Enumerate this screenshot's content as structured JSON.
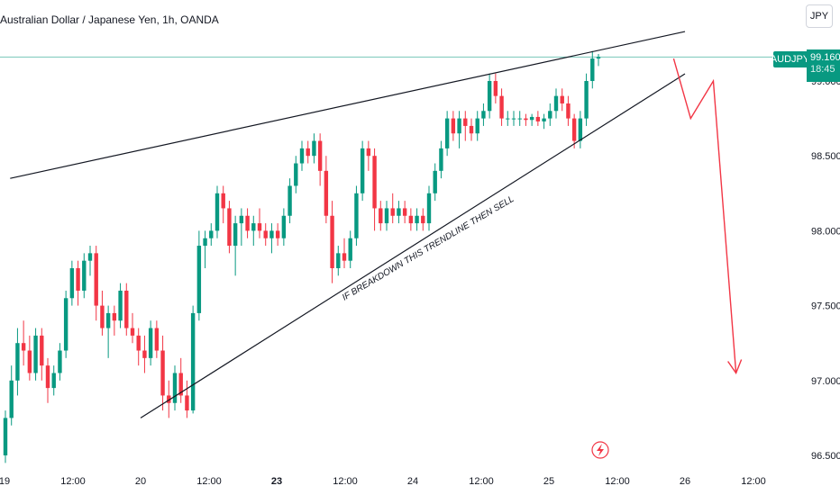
{
  "header": {
    "title": "Australian Dollar / Japanese Yen, 1h, OANDA",
    "currency": "JPY"
  },
  "price_label": {
    "symbol": "AUDJPY",
    "price": "99.160",
    "countdown": "18:45"
  },
  "annotation": {
    "text": "IF BREAKDOWN THIS TRENDLINE THEN SELL"
  },
  "colors": {
    "up": "#089981",
    "down": "#f23645",
    "trendline": "#131722",
    "projection": "#f23645",
    "price_line": "#089981"
  },
  "chart_data": {
    "type": "candlestick",
    "title": "Australian Dollar / Japanese Yen, 1h, OANDA",
    "ylim": [
      96.4,
      99.5
    ],
    "y_ticks": [
      "96.500",
      "97.000",
      "97.500",
      "98.000",
      "98.500",
      "99.000"
    ],
    "y_tick_values": [
      96.5,
      97.0,
      97.5,
      98.0,
      98.5,
      99.0
    ],
    "x_ticks": [
      "19",
      "12:00",
      "20",
      "12:00",
      "23",
      "12:00",
      "24",
      "12:00",
      "25",
      "12:00",
      "26",
      "12:00"
    ],
    "x_tick_bold": [
      false,
      false,
      false,
      false,
      true,
      false,
      false,
      false,
      false,
      false,
      false,
      false
    ],
    "last_price": 99.16,
    "candles_ohlc": [
      [
        96.5,
        96.8,
        96.45,
        96.75
      ],
      [
        96.75,
        97.1,
        96.7,
        97.0
      ],
      [
        97.0,
        97.35,
        96.9,
        97.25
      ],
      [
        97.25,
        97.4,
        97.1,
        97.2
      ],
      [
        97.2,
        97.3,
        97.0,
        97.05
      ],
      [
        97.05,
        97.35,
        97.0,
        97.3
      ],
      [
        97.3,
        97.35,
        97.0,
        97.1
      ],
      [
        97.1,
        97.15,
        96.85,
        96.95
      ],
      [
        96.95,
        97.1,
        96.9,
        97.05
      ],
      [
        97.05,
        97.25,
        97.0,
        97.2
      ],
      [
        97.2,
        97.6,
        97.15,
        97.55
      ],
      [
        97.55,
        97.8,
        97.5,
        97.75
      ],
      [
        97.75,
        97.8,
        97.5,
        97.6
      ],
      [
        97.6,
        97.85,
        97.55,
        97.8
      ],
      [
        97.8,
        97.9,
        97.7,
        97.85
      ],
      [
        97.85,
        97.9,
        97.4,
        97.5
      ],
      [
        97.5,
        97.6,
        97.3,
        97.35
      ],
      [
        97.35,
        97.5,
        97.15,
        97.45
      ],
      [
        97.45,
        97.5,
        97.3,
        97.4
      ],
      [
        97.4,
        97.65,
        97.35,
        97.6
      ],
      [
        97.6,
        97.65,
        97.3,
        97.35
      ],
      [
        97.35,
        97.45,
        97.25,
        97.3
      ],
      [
        97.3,
        97.35,
        97.1,
        97.2
      ],
      [
        97.2,
        97.3,
        97.05,
        97.15
      ],
      [
        97.15,
        97.4,
        97.1,
        97.35
      ],
      [
        97.35,
        97.4,
        97.15,
        97.2
      ],
      [
        97.2,
        97.3,
        96.8,
        96.9
      ],
      [
        96.9,
        97.0,
        96.75,
        96.85
      ],
      [
        96.85,
        97.1,
        96.8,
        97.05
      ],
      [
        97.05,
        97.15,
        96.85,
        96.9
      ],
      [
        96.9,
        97.0,
        96.75,
        96.8
      ],
      [
        96.8,
        97.5,
        96.78,
        97.45
      ],
      [
        97.45,
        98.0,
        97.4,
        97.9
      ],
      [
        97.9,
        98.0,
        97.75,
        97.95
      ],
      [
        97.95,
        98.05,
        97.9,
        98.0
      ],
      [
        98.0,
        98.3,
        97.95,
        98.25
      ],
      [
        98.25,
        98.3,
        98.05,
        98.15
      ],
      [
        98.15,
        98.2,
        97.85,
        97.9
      ],
      [
        97.9,
        98.1,
        97.7,
        98.05
      ],
      [
        98.05,
        98.15,
        97.9,
        98.1
      ],
      [
        98.1,
        98.15,
        97.95,
        98.0
      ],
      [
        98.0,
        98.1,
        97.9,
        98.05
      ],
      [
        98.05,
        98.15,
        97.95,
        98.0
      ],
      [
        98.0,
        98.05,
        97.9,
        97.95
      ],
      [
        97.95,
        98.05,
        97.85,
        98.0
      ],
      [
        98.0,
        98.05,
        97.9,
        97.95
      ],
      [
        97.95,
        98.15,
        97.9,
        98.1
      ],
      [
        98.1,
        98.35,
        98.05,
        98.3
      ],
      [
        98.3,
        98.5,
        98.25,
        98.45
      ],
      [
        98.45,
        98.6,
        98.4,
        98.55
      ],
      [
        98.55,
        98.6,
        98.45,
        98.5
      ],
      [
        98.5,
        98.65,
        98.45,
        98.6
      ],
      [
        98.6,
        98.65,
        98.3,
        98.4
      ],
      [
        98.4,
        98.5,
        98.05,
        98.1
      ],
      [
        98.1,
        98.2,
        97.65,
        97.75
      ],
      [
        97.75,
        97.9,
        97.7,
        97.85
      ],
      [
        97.85,
        97.95,
        97.75,
        97.8
      ],
      [
        97.8,
        98.0,
        97.75,
        97.95
      ],
      [
        97.95,
        98.3,
        97.9,
        98.25
      ],
      [
        98.25,
        98.6,
        98.2,
        98.55
      ],
      [
        98.55,
        98.6,
        98.4,
        98.5
      ],
      [
        98.5,
        98.55,
        98.0,
        98.15
      ],
      [
        98.15,
        98.2,
        98.0,
        98.05
      ],
      [
        98.05,
        98.2,
        98.0,
        98.15
      ],
      [
        98.15,
        98.25,
        98.05,
        98.1
      ],
      [
        98.1,
        98.2,
        98.05,
        98.15
      ],
      [
        98.15,
        98.2,
        98.05,
        98.1
      ],
      [
        98.1,
        98.15,
        98.0,
        98.05
      ],
      [
        98.05,
        98.15,
        98.0,
        98.1
      ],
      [
        98.1,
        98.15,
        98.0,
        98.05
      ],
      [
        98.05,
        98.3,
        98.0,
        98.25
      ],
      [
        98.25,
        98.45,
        98.2,
        98.4
      ],
      [
        98.4,
        98.6,
        98.35,
        98.55
      ],
      [
        98.55,
        98.8,
        98.5,
        98.75
      ],
      [
        98.75,
        98.8,
        98.6,
        98.65
      ],
      [
        98.65,
        98.8,
        98.55,
        98.75
      ],
      [
        98.75,
        98.8,
        98.6,
        98.7
      ],
      [
        98.7,
        98.75,
        98.6,
        98.65
      ],
      [
        98.65,
        98.8,
        98.6,
        98.75
      ],
      [
        98.75,
        98.85,
        98.7,
        98.8
      ],
      [
        98.8,
        99.05,
        98.75,
        99.0
      ],
      [
        99.0,
        99.05,
        98.85,
        98.9
      ],
      [
        98.9,
        98.95,
        98.7,
        98.75
      ],
      [
        98.75,
        98.8,
        98.7,
        98.75
      ],
      [
        98.75,
        98.8,
        98.7,
        98.75
      ],
      [
        98.75,
        98.8,
        98.7,
        98.75
      ],
      [
        98.75,
        98.78,
        98.7,
        98.74
      ],
      [
        98.74,
        98.78,
        98.7,
        98.76
      ],
      [
        98.76,
        98.8,
        98.7,
        98.73
      ],
      [
        98.73,
        98.78,
        98.68,
        98.75
      ],
      [
        98.75,
        98.85,
        98.7,
        98.8
      ],
      [
        98.8,
        98.95,
        98.75,
        98.9
      ],
      [
        98.9,
        98.95,
        98.8,
        98.85
      ],
      [
        98.85,
        98.9,
        98.7,
        98.75
      ],
      [
        98.75,
        98.78,
        98.55,
        98.6
      ],
      [
        98.6,
        98.8,
        98.55,
        98.75
      ],
      [
        98.75,
        99.05,
        98.7,
        99.0
      ],
      [
        99.0,
        99.2,
        98.95,
        99.15
      ],
      [
        99.15,
        99.18,
        99.1,
        99.16
      ]
    ],
    "trendlines": [
      {
        "from": [
          "20 00:00",
          96.75
        ],
        "to": [
          "25 22:00",
          99.0
        ],
        "label": "IF BREAKDOWN THIS TRENDLINE THEN SELL"
      },
      {
        "from": [
          "19 01:00",
          98.35
        ],
        "to": [
          "26 00:00",
          99.33
        ]
      }
    ],
    "projection": [
      [
        "25 22:00",
        99.15
      ],
      [
        "26 01:00",
        98.75
      ],
      [
        "26 05:00",
        99.0
      ],
      [
        "26 09:00",
        97.05
      ]
    ],
    "grid": false
  }
}
